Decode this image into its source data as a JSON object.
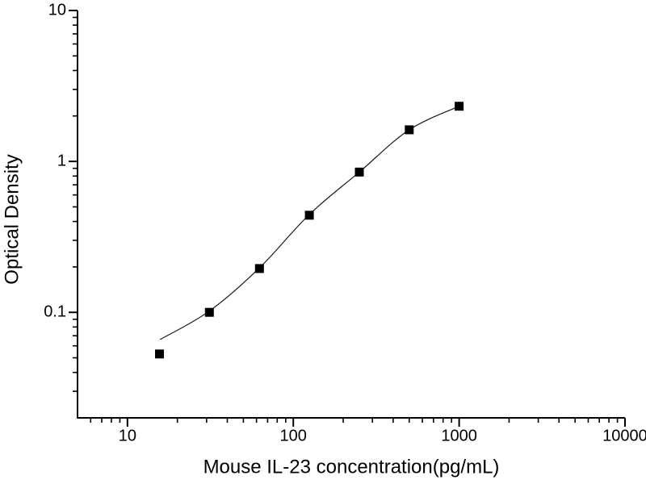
{
  "figure": {
    "background": "#ffffff",
    "ink_color": "#000000",
    "curve_color": "#1a1a1a"
  },
  "chart_data": {
    "type": "scatter",
    "title": "",
    "xlabel": "Mouse IL-23 concentration(pg/mL)",
    "ylabel": "Optical Density",
    "x_scale": "log",
    "y_scale": "log",
    "xlim": [
      5,
      10000
    ],
    "ylim": [
      0.02,
      10
    ],
    "grid": false,
    "legend": null,
    "x_major_ticks": [
      10,
      100,
      1000,
      10000
    ],
    "x_tick_labels": [
      "10",
      "100",
      "1000",
      "10000"
    ],
    "y_major_ticks": [
      0.1,
      1,
      10
    ],
    "y_tick_labels": [
      "0.1",
      "1",
      "10"
    ],
    "series": [
      {
        "name": "standard-points",
        "marker": "filled-square",
        "points": [
          {
            "x": 15.6,
            "y": 0.053
          },
          {
            "x": 31.2,
            "y": 0.1
          },
          {
            "x": 62.5,
            "y": 0.195
          },
          {
            "x": 125,
            "y": 0.44
          },
          {
            "x": 250,
            "y": 0.85
          },
          {
            "x": 500,
            "y": 1.62
          },
          {
            "x": 1000,
            "y": 2.32
          }
        ]
      }
    ],
    "fit_curve": {
      "name": "fitted-standard-curve",
      "points": [
        [
          15.7,
          0.066
        ],
        [
          31.2,
          0.102
        ],
        [
          62.5,
          0.197
        ],
        [
          125,
          0.445
        ],
        [
          250,
          0.85
        ],
        [
          500,
          1.62
        ],
        [
          1000,
          2.32
        ]
      ]
    }
  }
}
